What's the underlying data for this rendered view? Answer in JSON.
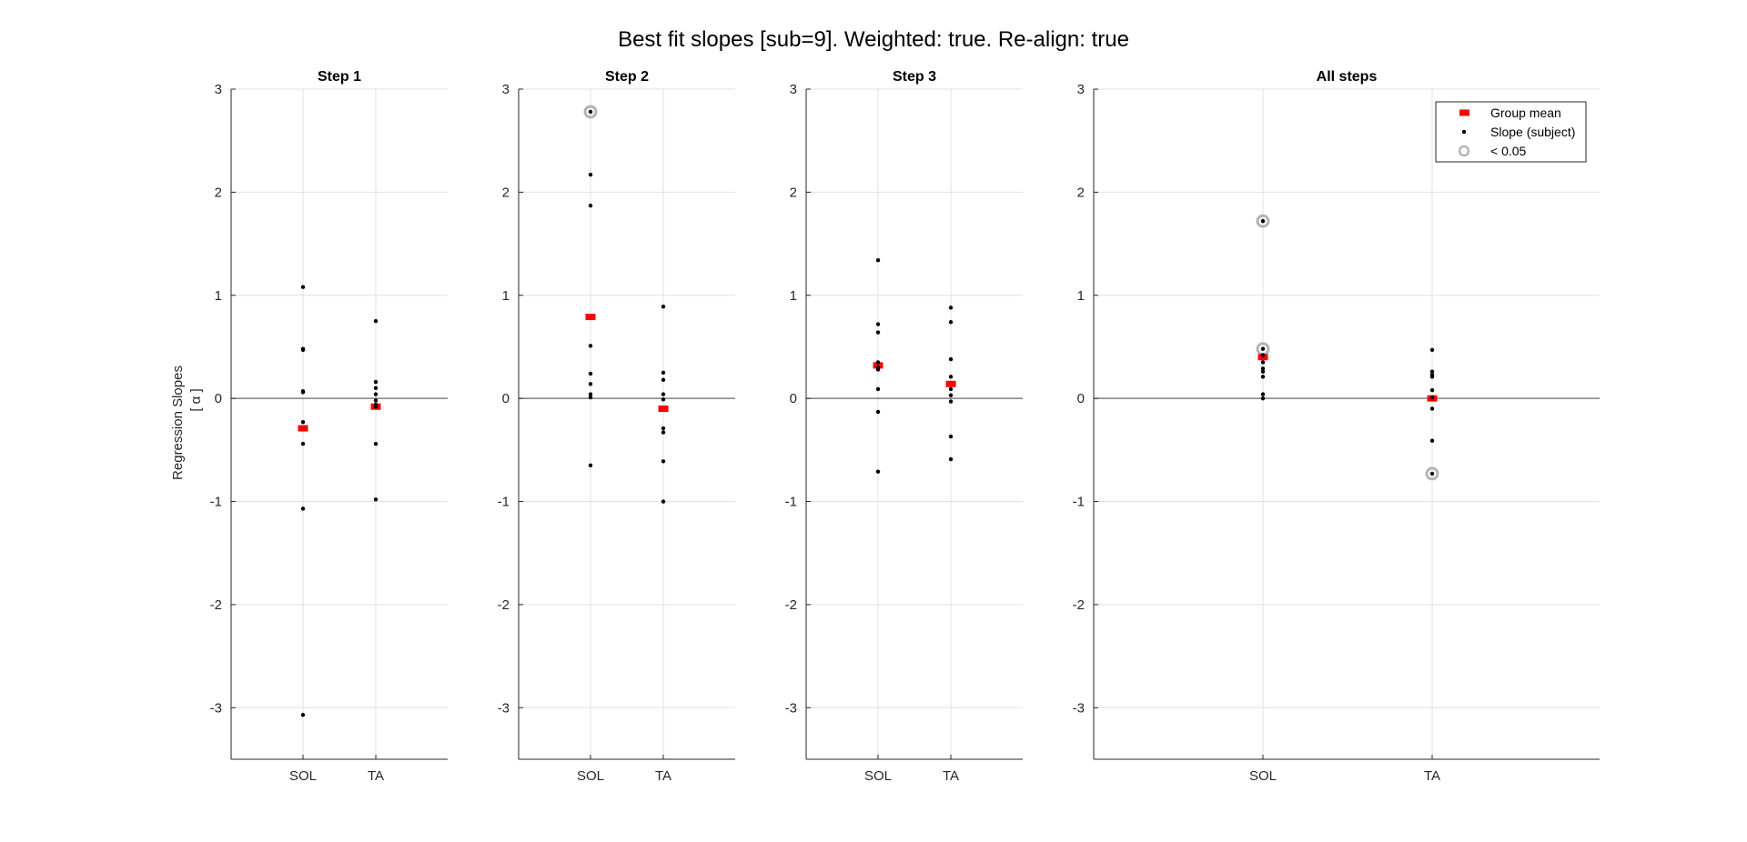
{
  "figure_title": "Best fit slopes [sub=9]. Weighted: true. Re-align: true",
  "ylabel_line1": "Regression Slopes",
  "ylabel_line2": "[ α ]",
  "legend": {
    "group_mean": "Group mean",
    "slope_subject": "Slope (subject)",
    "significant": "< 0.05"
  },
  "colors": {
    "mean": "#ff0000",
    "point": "#000000",
    "sig_ring": "#b4b4b4",
    "grid": "#e0e0e0",
    "zero_line": "#666666"
  },
  "chart_data": [
    {
      "type": "scatter",
      "title": "Step 1",
      "categories": [
        "SOL",
        "TA"
      ],
      "ylim": [
        -3.5,
        3
      ],
      "yticks": [
        -3,
        -2,
        -1,
        0,
        1,
        2,
        3
      ],
      "grid": true,
      "series": [
        {
          "name": "Slope (subject)",
          "points": [
            {
              "x": "SOL",
              "y": 1.08
            },
            {
              "x": "SOL",
              "y": 0.48
            },
            {
              "x": "SOL",
              "y": 0.47
            },
            {
              "x": "SOL",
              "y": 0.07
            },
            {
              "x": "SOL",
              "y": 0.06
            },
            {
              "x": "SOL",
              "y": -0.23
            },
            {
              "x": "SOL",
              "y": -0.44
            },
            {
              "x": "SOL",
              "y": -1.07
            },
            {
              "x": "SOL",
              "y": -3.07
            },
            {
              "x": "TA",
              "y": 0.75
            },
            {
              "x": "TA",
              "y": 0.16
            },
            {
              "x": "TA",
              "y": 0.1
            },
            {
              "x": "TA",
              "y": 0.04
            },
            {
              "x": "TA",
              "y": -0.02
            },
            {
              "x": "TA",
              "y": -0.06
            },
            {
              "x": "TA",
              "y": -0.08
            },
            {
              "x": "TA",
              "y": -0.44
            },
            {
              "x": "TA",
              "y": -0.98
            }
          ]
        },
        {
          "name": "Group mean",
          "points": [
            {
              "x": "SOL",
              "y": -0.29
            },
            {
              "x": "TA",
              "y": -0.08
            }
          ]
        },
        {
          "name": "< 0.05",
          "points": []
        }
      ]
    },
    {
      "type": "scatter",
      "title": "Step 2",
      "categories": [
        "SOL",
        "TA"
      ],
      "ylim": [
        -3.5,
        3
      ],
      "yticks": [
        -3,
        -2,
        -1,
        0,
        1,
        2,
        3
      ],
      "grid": true,
      "series": [
        {
          "name": "Slope (subject)",
          "points": [
            {
              "x": "SOL",
              "y": 2.78
            },
            {
              "x": "SOL",
              "y": 2.17
            },
            {
              "x": "SOL",
              "y": 1.87
            },
            {
              "x": "SOL",
              "y": 0.51
            },
            {
              "x": "SOL",
              "y": 0.24
            },
            {
              "x": "SOL",
              "y": 0.14
            },
            {
              "x": "SOL",
              "y": 0.04
            },
            {
              "x": "SOL",
              "y": 0.01
            },
            {
              "x": "SOL",
              "y": -0.65
            },
            {
              "x": "TA",
              "y": 0.89
            },
            {
              "x": "TA",
              "y": 0.25
            },
            {
              "x": "TA",
              "y": 0.18
            },
            {
              "x": "TA",
              "y": 0.04
            },
            {
              "x": "TA",
              "y": -0.01
            },
            {
              "x": "TA",
              "y": -0.29
            },
            {
              "x": "TA",
              "y": -0.33
            },
            {
              "x": "TA",
              "y": -0.61
            },
            {
              "x": "TA",
              "y": -1.0
            }
          ]
        },
        {
          "name": "Group mean",
          "points": [
            {
              "x": "SOL",
              "y": 0.79
            },
            {
              "x": "TA",
              "y": -0.1
            }
          ]
        },
        {
          "name": "< 0.05",
          "points": [
            {
              "x": "SOL",
              "y": 2.78
            }
          ]
        }
      ]
    },
    {
      "type": "scatter",
      "title": "Step 3",
      "categories": [
        "SOL",
        "TA"
      ],
      "ylim": [
        -3.5,
        3
      ],
      "yticks": [
        -3,
        -2,
        -1,
        0,
        1,
        2,
        3
      ],
      "grid": true,
      "series": [
        {
          "name": "Slope (subject)",
          "points": [
            {
              "x": "SOL",
              "y": 1.34
            },
            {
              "x": "SOL",
              "y": 0.72
            },
            {
              "x": "SOL",
              "y": 0.64
            },
            {
              "x": "SOL",
              "y": 0.35
            },
            {
              "x": "SOL",
              "y": 0.3
            },
            {
              "x": "SOL",
              "y": 0.28
            },
            {
              "x": "SOL",
              "y": 0.09
            },
            {
              "x": "SOL",
              "y": -0.13
            },
            {
              "x": "SOL",
              "y": -0.71
            },
            {
              "x": "TA",
              "y": 0.88
            },
            {
              "x": "TA",
              "y": 0.74
            },
            {
              "x": "TA",
              "y": 0.38
            },
            {
              "x": "TA",
              "y": 0.21
            },
            {
              "x": "TA",
              "y": 0.09
            },
            {
              "x": "TA",
              "y": 0.03
            },
            {
              "x": "TA",
              "y": -0.03
            },
            {
              "x": "TA",
              "y": -0.37
            },
            {
              "x": "TA",
              "y": -0.59
            }
          ]
        },
        {
          "name": "Group mean",
          "points": [
            {
              "x": "SOL",
              "y": 0.32
            },
            {
              "x": "TA",
              "y": 0.14
            }
          ]
        },
        {
          "name": "< 0.05",
          "points": []
        }
      ]
    },
    {
      "type": "scatter",
      "title": "All steps",
      "categories": [
        "SOL",
        "TA"
      ],
      "ylim": [
        -3.5,
        3
      ],
      "yticks": [
        -3,
        -2,
        -1,
        0,
        1,
        2,
        3
      ],
      "grid": true,
      "legend": "top-right",
      "series": [
        {
          "name": "Slope (subject)",
          "points": [
            {
              "x": "SOL",
              "y": 1.72
            },
            {
              "x": "SOL",
              "y": 0.48
            },
            {
              "x": "SOL",
              "y": 0.42
            },
            {
              "x": "SOL",
              "y": 0.35
            },
            {
              "x": "SOL",
              "y": 0.29
            },
            {
              "x": "SOL",
              "y": 0.26
            },
            {
              "x": "SOL",
              "y": 0.21
            },
            {
              "x": "SOL",
              "y": 0.04
            },
            {
              "x": "SOL",
              "y": 0.0
            },
            {
              "x": "TA",
              "y": 0.47
            },
            {
              "x": "TA",
              "y": 0.26
            },
            {
              "x": "TA",
              "y": 0.23
            },
            {
              "x": "TA",
              "y": 0.21
            },
            {
              "x": "TA",
              "y": 0.08
            },
            {
              "x": "TA",
              "y": 0.01
            },
            {
              "x": "TA",
              "y": -0.1
            },
            {
              "x": "TA",
              "y": -0.41
            },
            {
              "x": "TA",
              "y": -0.73
            }
          ]
        },
        {
          "name": "Group mean",
          "points": [
            {
              "x": "SOL",
              "y": 0.4
            },
            {
              "x": "TA",
              "y": 0.0
            }
          ]
        },
        {
          "name": "< 0.05",
          "points": [
            {
              "x": "SOL",
              "y": 1.72
            },
            {
              "x": "SOL",
              "y": 0.48
            },
            {
              "x": "TA",
              "y": -0.73
            }
          ]
        }
      ]
    }
  ]
}
